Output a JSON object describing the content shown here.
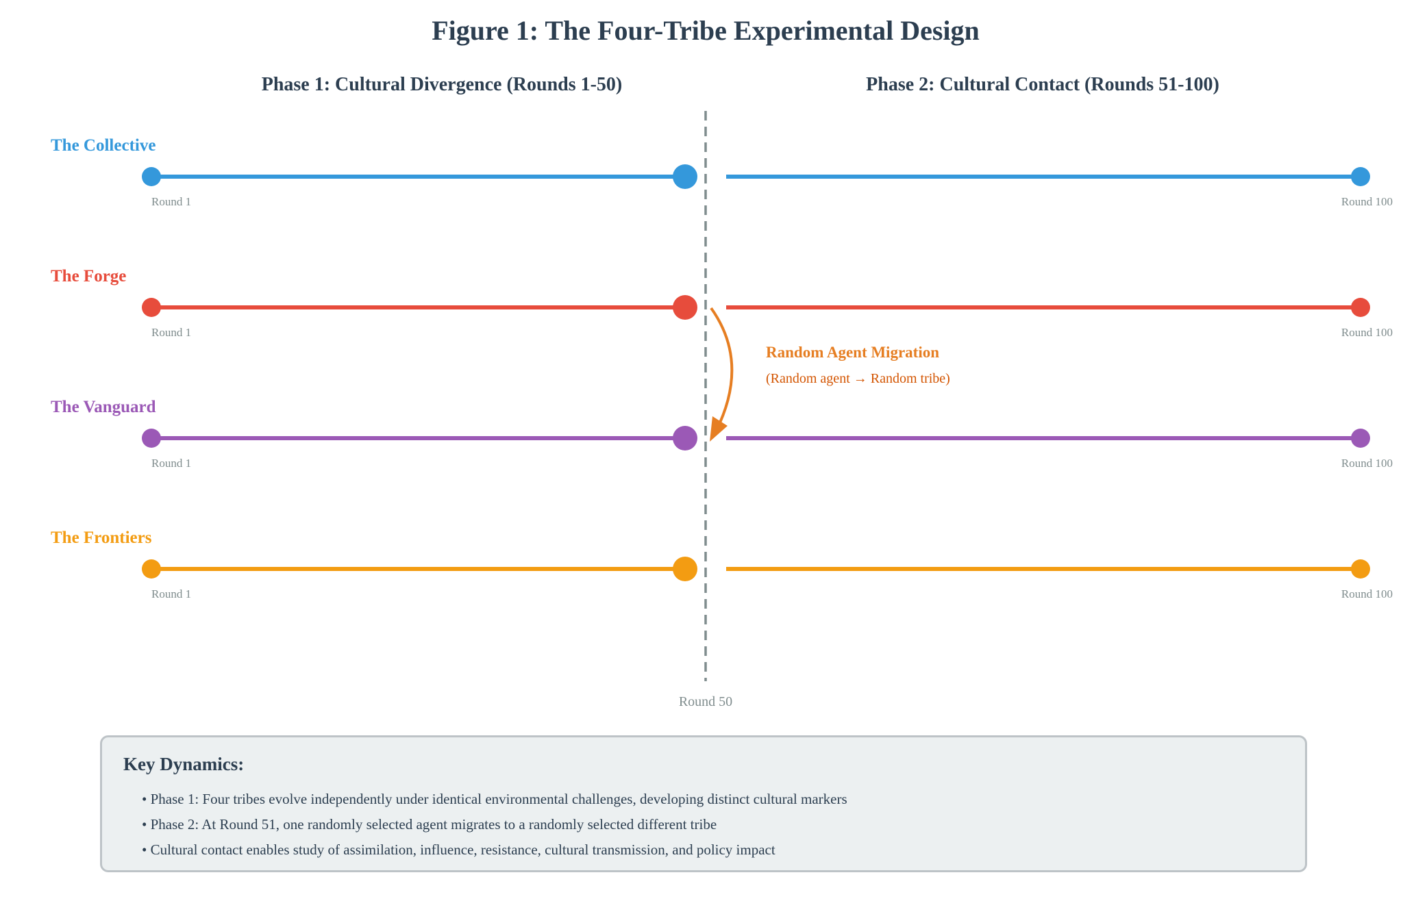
{
  "figure": {
    "title": "Figure 1: The Four-Tribe Experimental Design",
    "phase1_label": "Phase 1: Cultural Divergence (Rounds 1-50)",
    "phase2_label": "Phase 2: Cultural Contact (Rounds 51-100)",
    "divider_label": "Round 50",
    "start_label": "Round 1",
    "end_label": "Round 100"
  },
  "tribes": [
    {
      "name": "The Collective",
      "color": "#3498db"
    },
    {
      "name": "The Forge",
      "color": "#e74c3c"
    },
    {
      "name": "The Vanguard",
      "color": "#9b59b6"
    },
    {
      "name": "The Frontiers",
      "color": "#f39c12"
    }
  ],
  "migration": {
    "label": "Random Agent Migration",
    "sublabel": "(Random agent → Random tribe)",
    "color": "#e67e22",
    "from_tribe": "The Forge",
    "to_tribe": "The Vanguard"
  },
  "colors": {
    "title": "#2c3e50",
    "divider": "#7f8c8d",
    "muted_text": "#7f8c8d"
  },
  "key_dynamics": {
    "title": "Key Dynamics:",
    "items": [
      "• Phase 1: Four tribes evolve independently under identical environmental challenges, developing distinct cultural markers",
      "• Phase 2: At Round 51, one randomly selected agent migrates to a randomly selected different tribe",
      "• Cultural contact enables study of assimilation, influence, resistance, cultural transmission, and policy impact"
    ]
  }
}
